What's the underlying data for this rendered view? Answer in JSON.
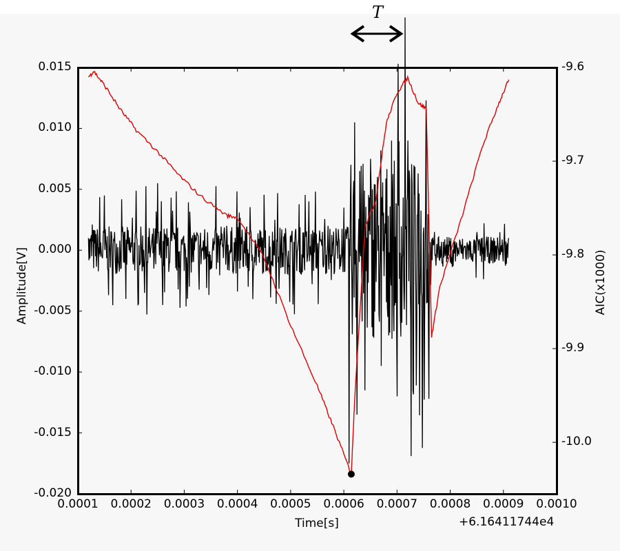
{
  "annotation": {
    "label": "T",
    "arrow": "double-headed horizontal arrow spanning the high-amplitude window"
  },
  "axes": {
    "xlabel": "Time[s]",
    "x_offset": "+6.16411744e4",
    "ylabel": "Amplitude[V]",
    "y2label": "AIC(x1000)",
    "xticks": [
      "0.0001",
      "0.0002",
      "0.0003",
      "0.0004",
      "0.0005",
      "0.0006",
      "0.0007",
      "0.0008",
      "0.0009",
      "0.0010"
    ],
    "yticks": [
      "0.015",
      "0.010",
      "0.005",
      "0.000",
      "-0.005",
      "-0.010",
      "-0.015",
      "-0.020"
    ],
    "y2ticks": [
      "-9.6",
      "-9.7",
      "-9.8",
      "-9.9",
      "-10.0"
    ]
  },
  "colors": {
    "signal": "#000000",
    "aic": "#e00000",
    "background": "#f7f7f7"
  },
  "chart_data": {
    "type": "line",
    "title": "",
    "xlabel": "Time[s]",
    "ylabel": "Amplitude[V]",
    "y2label": "AIC(x1000)",
    "x_offset": 61641.1744,
    "xlim": [
      0.0001,
      0.001
    ],
    "ylim": [
      -0.02,
      0.015
    ],
    "y2lim": [
      -10.055,
      -9.6
    ],
    "grid": false,
    "legend": null,
    "annotations": [
      {
        "text": "T",
        "type": "double-arrow",
        "x_range": [
          0.00062,
          0.00072
        ],
        "position": "above plot"
      },
      {
        "text": "",
        "type": "marker-dot",
        "x": 0.000614,
        "y2": -10.034,
        "note": "AIC minimum / picked onset"
      }
    ],
    "series": [
      {
        "name": "Amplitude (waveform)",
        "axis": "left",
        "color": "#000000",
        "x": [
          0.00012,
          0.00015,
          0.00019,
          0.00025,
          0.00026,
          0.00031,
          0.00038,
          0.00042,
          0.00047,
          0.00052,
          0.00057,
          0.0006,
          0.00061,
          0.00062,
          0.000625,
          0.00063,
          0.00064,
          0.00065,
          0.00067,
          0.00069,
          0.0007,
          0.00072,
          0.00073,
          0.00074,
          0.000755,
          0.00076,
          0.00077,
          0.0008,
          0.00085,
          0.00091
        ],
        "values": [
          0.001,
          0.0045,
          -0.004,
          0.0055,
          -0.0045,
          -0.003,
          0.002,
          -0.003,
          0.0025,
          -0.002,
          0.002,
          0.0035,
          -0.0175,
          0.0105,
          -0.0135,
          0.0065,
          -0.0115,
          0.0075,
          -0.0095,
          0.009,
          -0.012,
          0.009,
          -0.0115,
          0.0063,
          0.0123,
          -0.0122,
          0.0015,
          -0.001,
          0.0015,
          0.001
        ]
      },
      {
        "name": "AIC",
        "axis": "right",
        "color": "#e00000",
        "x": [
          0.00012,
          0.00013,
          0.00015,
          0.00018,
          0.00021,
          0.00025,
          0.00029,
          0.00033,
          0.00038,
          0.0004,
          0.00045,
          0.0005,
          0.00055,
          0.00058,
          0.000614,
          0.00062,
          0.00064,
          0.00066,
          0.00068,
          0.0007,
          0.00072,
          0.00074,
          0.000755,
          0.000765,
          0.00078,
          0.00082,
          0.00086,
          0.00089,
          0.00091
        ],
        "values": [
          -9.61,
          -9.604,
          -9.619,
          -9.645,
          -9.667,
          -9.69,
          -9.715,
          -9.737,
          -9.758,
          -9.76,
          -9.803,
          -9.875,
          -9.94,
          -9.983,
          -10.034,
          -9.958,
          -9.769,
          -9.742,
          -9.659,
          -9.627,
          -9.611,
          -9.638,
          -9.644,
          -9.887,
          -9.835,
          -9.763,
          -9.685,
          -9.64,
          -9.613
        ]
      }
    ]
  }
}
